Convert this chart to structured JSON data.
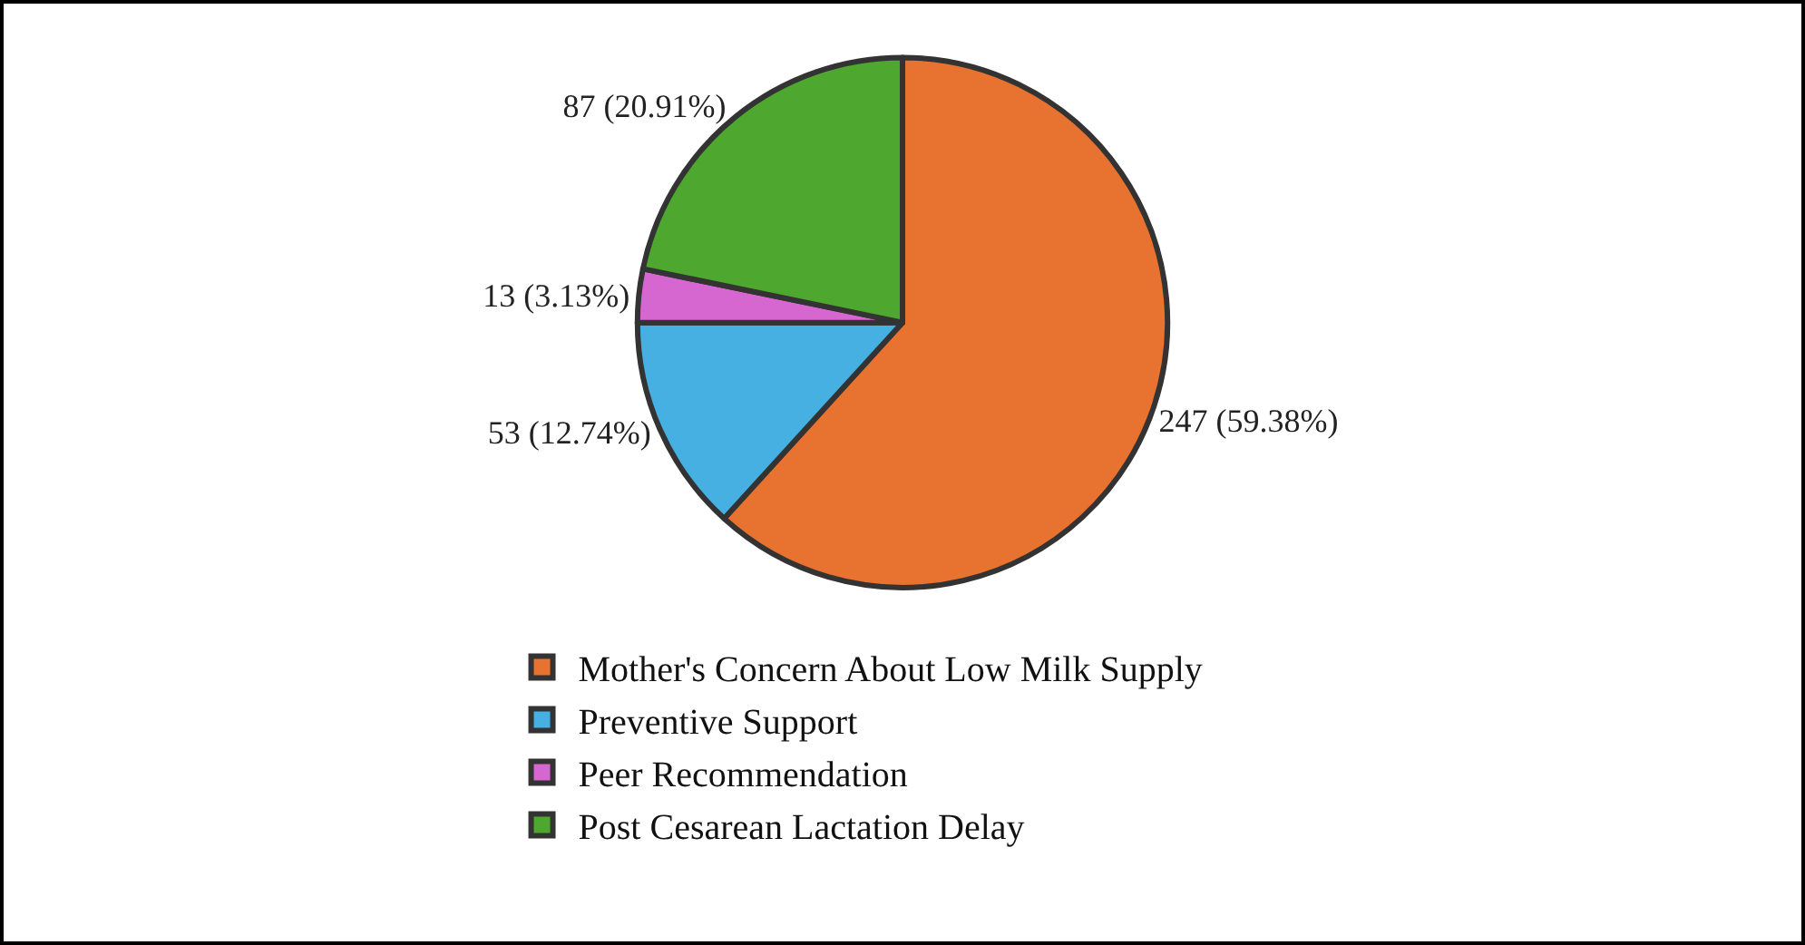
{
  "chart_data": {
    "type": "pie",
    "categories": [
      "Mother's Concern About Low Milk Supply",
      "Preventive Support",
      "Peer Recommendation",
      "Post Cesarean Lactation Delay"
    ],
    "values": [
      247,
      53,
      13,
      87
    ],
    "value_labels": [
      "247 (59.38%)",
      "53 (12.74%)",
      "13 (3.13%)",
      "87 (20.91%)"
    ],
    "colors": [
      "#e87230",
      "#45b0e1",
      "#d767d0",
      "#4ea72e"
    ],
    "legend": "bottom"
  }
}
